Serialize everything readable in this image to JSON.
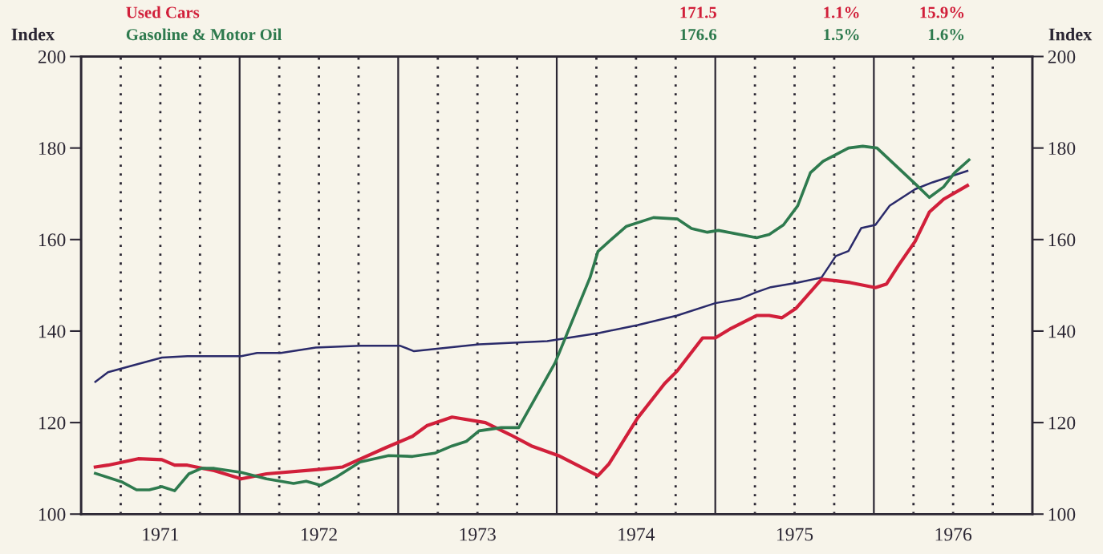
{
  "chart_data": {
    "type": "line",
    "ylabel": "Index",
    "y2label": "Index",
    "xlim": [
      1971,
      1977
    ],
    "ylim": [
      100,
      200
    ],
    "y2lim": [
      100,
      200
    ],
    "yticks": [
      100,
      120,
      140,
      160,
      180,
      200
    ],
    "y2ticks": [
      100,
      120,
      140,
      160,
      180,
      200
    ],
    "xticks": [
      {
        "value": 1971,
        "label": null
      },
      {
        "value": 1971.25,
        "label": null
      },
      {
        "value": 1971.5,
        "label": "1971"
      },
      {
        "value": 1971.75,
        "label": null
      },
      {
        "value": 1972,
        "label": null
      },
      {
        "value": 1972.25,
        "label": null
      },
      {
        "value": 1972.5,
        "label": "1972"
      },
      {
        "value": 1972.75,
        "label": null
      },
      {
        "value": 1973,
        "label": null
      },
      {
        "value": 1973.25,
        "label": null
      },
      {
        "value": 1973.5,
        "label": "1973"
      },
      {
        "value": 1973.75,
        "label": null
      },
      {
        "value": 1974,
        "label": null
      },
      {
        "value": 1974.25,
        "label": null
      },
      {
        "value": 1974.5,
        "label": "1974"
      },
      {
        "value": 1974.75,
        "label": null
      },
      {
        "value": 1975,
        "label": null
      },
      {
        "value": 1975.25,
        "label": null
      },
      {
        "value": 1975.5,
        "label": "1975"
      },
      {
        "value": 1975.75,
        "label": null
      },
      {
        "value": 1976,
        "label": null
      },
      {
        "value": 1976.25,
        "label": null
      },
      {
        "value": 1976.5,
        "label": "1976"
      },
      {
        "value": 1976.75,
        "label": null
      },
      {
        "value": 1977,
        "label": null
      }
    ],
    "grid": "x",
    "marker": "none",
    "line_style": "solid",
    "annotations": [
      "171.5",
      "1.1%",
      "15.9%",
      "176.6",
      "1.5%",
      "1.6%"
    ],
    "series": [
      {
        "color": "#2a2a6a",
        "x": [
          1971.09,
          1971.17,
          1971.36,
          1971.51,
          1971.67,
          1972.01,
          1972.11,
          1972.26,
          1972.48,
          1972.76,
          1973.01,
          1973.1,
          1973.51,
          1973.94,
          1974.27,
          1974.51,
          1974.76,
          1975.0,
          1975.16,
          1975.26,
          1975.35,
          1975.52,
          1975.67,
          1975.76,
          1975.84,
          1975.92,
          1976.01,
          1976.1,
          1976.26,
          1976.37,
          1976.59
        ],
        "values": [
          128.9,
          131.0,
          132.8,
          134.2,
          134.5,
          134.5,
          135.2,
          135.2,
          136.4,
          136.8,
          136.8,
          135.6,
          137.1,
          137.8,
          139.6,
          141.3,
          143.4,
          146.1,
          147.1,
          148.5,
          149.6,
          150.6,
          151.7,
          156.4,
          157.5,
          162.5,
          163.2,
          167.4,
          171.0,
          172.5,
          175.0
        ]
      },
      {
        "name": "Used Cars",
        "color": "#d11f3a",
        "x": [
          1971.09,
          1971.17,
          1971.36,
          1971.51,
          1971.59,
          1971.67,
          1971.84,
          1972.01,
          1972.17,
          1972.51,
          1972.65,
          1972.92,
          1973.09,
          1973.18,
          1973.34,
          1973.55,
          1973.71,
          1973.84,
          1974.01,
          1974.26,
          1974.33,
          1974.51,
          1974.68,
          1974.76,
          1974.92,
          1975.0,
          1975.1,
          1975.26,
          1975.34,
          1975.42,
          1975.51,
          1975.67,
          1975.76,
          1975.85,
          1976.01,
          1976.08,
          1976.16,
          1976.26,
          1976.35,
          1976.44,
          1976.59
        ],
        "values": [
          110.3,
          110.7,
          112.1,
          111.9,
          110.7,
          110.7,
          109.5,
          107.7,
          108.8,
          109.8,
          110.3,
          114.5,
          117.0,
          119.3,
          121.2,
          120.0,
          117.3,
          114.9,
          112.8,
          108.4,
          111.0,
          121.0,
          128.5,
          131.3,
          138.5,
          138.5,
          140.6,
          143.4,
          143.4,
          142.9,
          145.0,
          151.3,
          151.0,
          150.6,
          149.5,
          150.3,
          154.6,
          159.6,
          166.0,
          168.8,
          171.8
        ]
      },
      {
        "name": "Gasoline & Motor Oil",
        "color": "#2e7a4e",
        "x": [
          1971.09,
          1971.26,
          1971.35,
          1971.43,
          1971.51,
          1971.59,
          1971.68,
          1971.76,
          1971.84,
          1972.01,
          1972.17,
          1972.34,
          1972.42,
          1972.51,
          1972.61,
          1972.76,
          1972.94,
          1973.09,
          1973.23,
          1973.34,
          1973.43,
          1973.51,
          1973.65,
          1973.76,
          1973.99,
          1974.21,
          1974.26,
          1974.35,
          1974.44,
          1974.61,
          1974.76,
          1974.85,
          1974.95,
          1975.02,
          1975.26,
          1975.34,
          1975.43,
          1975.52,
          1975.6,
          1975.68,
          1975.84,
          1975.93,
          1976.02,
          1976.26,
          1976.35,
          1976.44,
          1976.51,
          1976.6
        ],
        "values": [
          108.9,
          107.0,
          105.3,
          105.3,
          106.0,
          105.1,
          108.8,
          110.0,
          110.0,
          109.1,
          107.7,
          106.7,
          107.2,
          106.3,
          108.1,
          111.4,
          112.8,
          112.6,
          113.3,
          114.9,
          115.9,
          118.2,
          118.9,
          118.9,
          133.1,
          151.7,
          157.4,
          160.2,
          162.9,
          164.8,
          164.5,
          162.4,
          161.6,
          162.0,
          160.4,
          161.1,
          163.2,
          167.4,
          174.6,
          177.1,
          180.0,
          180.4,
          180.0,
          172.2,
          169.2,
          171.5,
          174.6,
          177.4
        ]
      }
    ]
  }
}
